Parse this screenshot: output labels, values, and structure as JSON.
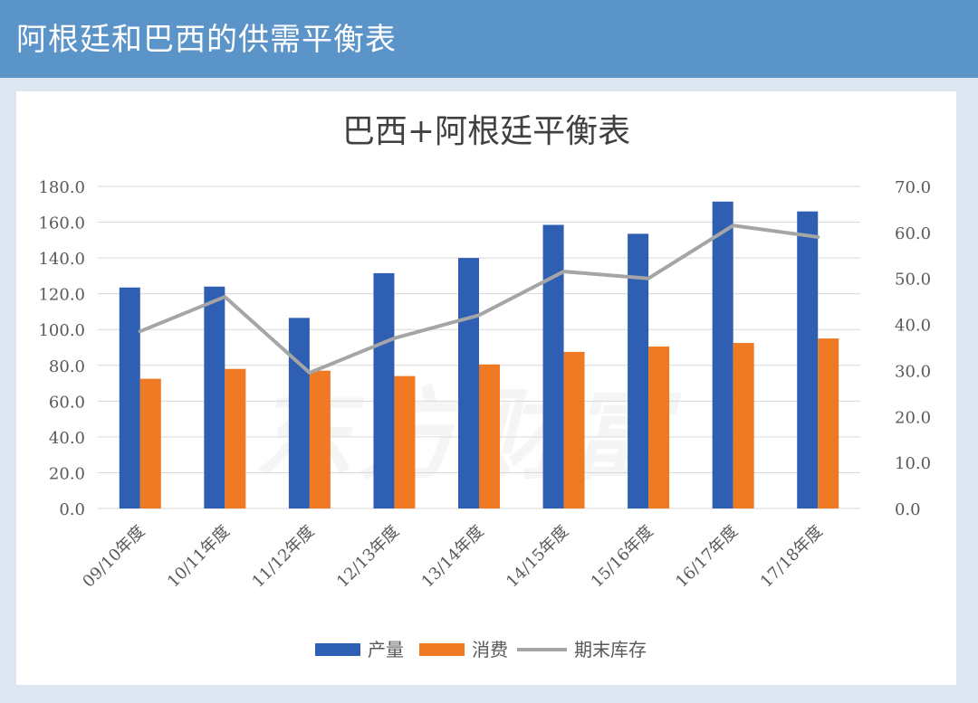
{
  "header": {
    "title": "阿根廷和巴西的供需平衡表"
  },
  "chart_data": {
    "type": "bar",
    "title": "巴西+阿根廷平衡表",
    "categories": [
      "09/10年度",
      "10/11年度",
      "11/12年度",
      "12/13年度",
      "13/14年度",
      "14/15年度",
      "15/16年度",
      "16/17年度",
      "17/18年度"
    ],
    "left_axis": {
      "ylim": [
        0,
        180
      ],
      "ticks": [
        "0.0",
        "20.0",
        "40.0",
        "60.0",
        "80.0",
        "100.0",
        "120.0",
        "140.0",
        "160.0",
        "180.0"
      ]
    },
    "right_axis": {
      "ylim": [
        0,
        70
      ],
      "ticks": [
        "0.0",
        "10.0",
        "20.0",
        "30.0",
        "40.0",
        "50.0",
        "60.0",
        "70.0"
      ]
    },
    "series": [
      {
        "name": "产量",
        "kind": "bar",
        "axis": "left",
        "color": "#2e5fb3",
        "values": [
          123.5,
          124,
          106.5,
          131.5,
          140,
          158.5,
          153.5,
          171.5,
          166
        ]
      },
      {
        "name": "消费",
        "kind": "bar",
        "axis": "left",
        "color": "#ef7a23",
        "values": [
          72.5,
          78,
          77,
          74,
          80.5,
          87.5,
          90.5,
          92.5,
          95
        ]
      },
      {
        "name": "期末库存",
        "kind": "line",
        "axis": "right",
        "color": "#a5a5a5",
        "values": [
          38.5,
          46,
          29.5,
          37,
          42,
          51.5,
          50,
          61.5,
          59
        ]
      }
    ],
    "grid": true,
    "legend": "bottom"
  },
  "watermark": "东方财富"
}
